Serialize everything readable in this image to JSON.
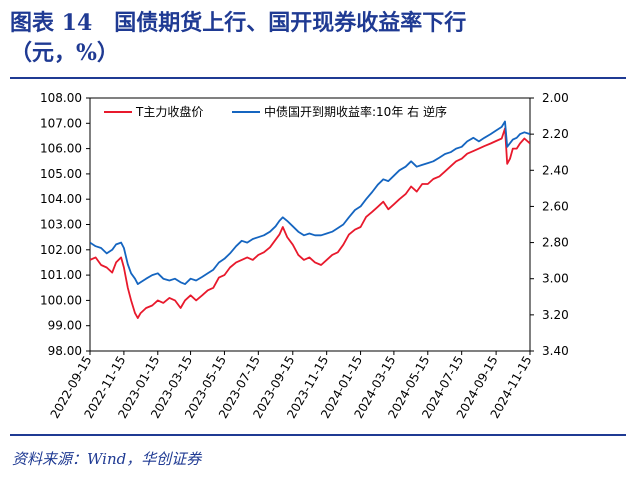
{
  "header": {
    "figure_label": "图表 14",
    "title_line1": "国债期货上行、国开现券收益率下行",
    "title_line2": "（元，%）"
  },
  "footer": {
    "source": "资料来源：Wind，华创证券"
  },
  "colors": {
    "title": "#1f3a93",
    "series_futures": "#e8192c",
    "series_yield": "#1565c0"
  },
  "chart_data": {
    "type": "line",
    "x_tick_labels": [
      "2022-09-15",
      "2022-11-15",
      "2023-01-15",
      "2023-03-15",
      "2023-05-15",
      "2023-07-15",
      "2023-09-15",
      "2023-11-15",
      "2024-01-15",
      "2024-03-15",
      "2024-05-15",
      "2024-07-15",
      "2024-09-15",
      "2024-11-15"
    ],
    "x_range": [
      "2022-09-15",
      "2024-11-15"
    ],
    "y_left": {
      "range": [
        98,
        108
      ],
      "ticks": [
        "98.00",
        "99.00",
        "100.00",
        "101.00",
        "102.00",
        "103.00",
        "104.00",
        "105.00",
        "106.00",
        "107.00",
        "108.00"
      ]
    },
    "y_right": {
      "range": [
        2.0,
        3.4
      ],
      "inverted": true,
      "ticks": [
        "2.00",
        "2.20",
        "2.40",
        "2.60",
        "2.80",
        "3.00",
        "3.20",
        "3.40"
      ]
    },
    "legend_position": "top",
    "series": [
      {
        "name": "T主力收盘价",
        "axis": "left",
        "color": "#e8192c",
        "points": [
          [
            "2022-09-15",
            101.6
          ],
          [
            "2022-09-25",
            101.7
          ],
          [
            "2022-10-05",
            101.4
          ],
          [
            "2022-10-15",
            101.3
          ],
          [
            "2022-10-25",
            101.1
          ],
          [
            "2022-11-01",
            101.5
          ],
          [
            "2022-11-10",
            101.7
          ],
          [
            "2022-11-15",
            101.3
          ],
          [
            "2022-11-22",
            100.5
          ],
          [
            "2022-11-28",
            100.0
          ],
          [
            "2022-12-05",
            99.5
          ],
          [
            "2022-12-10",
            99.3
          ],
          [
            "2022-12-15",
            99.5
          ],
          [
            "2022-12-25",
            99.7
          ],
          [
            "2023-01-05",
            99.8
          ],
          [
            "2023-01-15",
            100.0
          ],
          [
            "2023-01-25",
            99.9
          ],
          [
            "2023-02-05",
            100.1
          ],
          [
            "2023-02-15",
            100.0
          ],
          [
            "2023-02-25",
            99.7
          ],
          [
            "2023-03-05",
            100.0
          ],
          [
            "2023-03-15",
            100.2
          ],
          [
            "2023-03-25",
            100.0
          ],
          [
            "2023-04-05",
            100.2
          ],
          [
            "2023-04-15",
            100.4
          ],
          [
            "2023-04-25",
            100.5
          ],
          [
            "2023-05-05",
            100.9
          ],
          [
            "2023-05-15",
            101.0
          ],
          [
            "2023-05-25",
            101.3
          ],
          [
            "2023-06-05",
            101.5
          ],
          [
            "2023-06-15",
            101.6
          ],
          [
            "2023-06-25",
            101.7
          ],
          [
            "2023-07-05",
            101.6
          ],
          [
            "2023-07-15",
            101.8
          ],
          [
            "2023-07-25",
            101.9
          ],
          [
            "2023-08-05",
            102.1
          ],
          [
            "2023-08-15",
            102.4
          ],
          [
            "2023-08-22",
            102.6
          ],
          [
            "2023-08-28",
            102.9
          ],
          [
            "2023-09-05",
            102.5
          ],
          [
            "2023-09-15",
            102.2
          ],
          [
            "2023-09-25",
            101.8
          ],
          [
            "2023-10-05",
            101.6
          ],
          [
            "2023-10-15",
            101.7
          ],
          [
            "2023-10-25",
            101.5
          ],
          [
            "2023-11-05",
            101.4
          ],
          [
            "2023-11-15",
            101.6
          ],
          [
            "2023-11-25",
            101.8
          ],
          [
            "2023-12-05",
            101.9
          ],
          [
            "2023-12-15",
            102.2
          ],
          [
            "2023-12-25",
            102.6
          ],
          [
            "2024-01-05",
            102.8
          ],
          [
            "2024-01-15",
            102.9
          ],
          [
            "2024-01-25",
            103.3
          ],
          [
            "2024-02-05",
            103.5
          ],
          [
            "2024-02-15",
            103.7
          ],
          [
            "2024-02-25",
            103.9
          ],
          [
            "2024-03-05",
            103.6
          ],
          [
            "2024-03-15",
            103.8
          ],
          [
            "2024-03-25",
            104.0
          ],
          [
            "2024-04-05",
            104.2
          ],
          [
            "2024-04-15",
            104.5
          ],
          [
            "2024-04-25",
            104.3
          ],
          [
            "2024-05-05",
            104.6
          ],
          [
            "2024-05-15",
            104.6
          ],
          [
            "2024-05-25",
            104.8
          ],
          [
            "2024-06-05",
            104.9
          ],
          [
            "2024-06-15",
            105.1
          ],
          [
            "2024-06-25",
            105.3
          ],
          [
            "2024-07-05",
            105.5
          ],
          [
            "2024-07-15",
            105.6
          ],
          [
            "2024-07-25",
            105.8
          ],
          [
            "2024-08-05",
            105.9
          ],
          [
            "2024-08-15",
            106.0
          ],
          [
            "2024-08-25",
            106.1
          ],
          [
            "2024-09-05",
            106.2
          ],
          [
            "2024-09-15",
            106.3
          ],
          [
            "2024-09-25",
            106.4
          ],
          [
            "2024-10-01",
            106.8
          ],
          [
            "2024-10-05",
            105.4
          ],
          [
            "2024-10-10",
            105.6
          ],
          [
            "2024-10-15",
            106.0
          ],
          [
            "2024-10-22",
            106.0
          ],
          [
            "2024-10-28",
            106.2
          ],
          [
            "2024-11-05",
            106.4
          ],
          [
            "2024-11-15",
            106.2
          ]
        ]
      },
      {
        "name": "中债国开到期收益率:10年  右  逆序",
        "axis": "right",
        "color": "#1565c0",
        "points": [
          [
            "2022-09-15",
            2.8
          ],
          [
            "2022-09-25",
            2.82
          ],
          [
            "2022-10-05",
            2.83
          ],
          [
            "2022-10-15",
            2.86
          ],
          [
            "2022-10-25",
            2.84
          ],
          [
            "2022-11-01",
            2.81
          ],
          [
            "2022-11-10",
            2.8
          ],
          [
            "2022-11-15",
            2.83
          ],
          [
            "2022-11-22",
            2.92
          ],
          [
            "2022-11-28",
            2.97
          ],
          [
            "2022-12-05",
            3.0
          ],
          [
            "2022-12-10",
            3.03
          ],
          [
            "2022-12-15",
            3.02
          ],
          [
            "2022-12-25",
            3.0
          ],
          [
            "2023-01-05",
            2.98
          ],
          [
            "2023-01-15",
            2.97
          ],
          [
            "2023-01-25",
            3.0
          ],
          [
            "2023-02-05",
            3.01
          ],
          [
            "2023-02-15",
            3.0
          ],
          [
            "2023-02-25",
            3.02
          ],
          [
            "2023-03-05",
            3.03
          ],
          [
            "2023-03-15",
            3.0
          ],
          [
            "2023-03-25",
            3.01
          ],
          [
            "2023-04-05",
            2.99
          ],
          [
            "2023-04-15",
            2.97
          ],
          [
            "2023-04-25",
            2.95
          ],
          [
            "2023-05-05",
            2.91
          ],
          [
            "2023-05-15",
            2.89
          ],
          [
            "2023-05-25",
            2.86
          ],
          [
            "2023-06-05",
            2.82
          ],
          [
            "2023-06-15",
            2.79
          ],
          [
            "2023-06-25",
            2.8
          ],
          [
            "2023-07-05",
            2.78
          ],
          [
            "2023-07-15",
            2.77
          ],
          [
            "2023-07-25",
            2.76
          ],
          [
            "2023-08-05",
            2.74
          ],
          [
            "2023-08-15",
            2.71
          ],
          [
            "2023-08-22",
            2.68
          ],
          [
            "2023-08-28",
            2.66
          ],
          [
            "2023-09-05",
            2.68
          ],
          [
            "2023-09-15",
            2.71
          ],
          [
            "2023-09-25",
            2.74
          ],
          [
            "2023-10-05",
            2.76
          ],
          [
            "2023-10-15",
            2.75
          ],
          [
            "2023-10-25",
            2.76
          ],
          [
            "2023-11-05",
            2.76
          ],
          [
            "2023-11-15",
            2.75
          ],
          [
            "2023-11-25",
            2.74
          ],
          [
            "2023-12-05",
            2.72
          ],
          [
            "2023-12-15",
            2.7
          ],
          [
            "2023-12-25",
            2.66
          ],
          [
            "2024-01-05",
            2.62
          ],
          [
            "2024-01-15",
            2.6
          ],
          [
            "2024-01-25",
            2.56
          ],
          [
            "2024-02-05",
            2.52
          ],
          [
            "2024-02-15",
            2.48
          ],
          [
            "2024-02-25",
            2.45
          ],
          [
            "2024-03-05",
            2.46
          ],
          [
            "2024-03-15",
            2.43
          ],
          [
            "2024-03-25",
            2.4
          ],
          [
            "2024-04-05",
            2.38
          ],
          [
            "2024-04-15",
            2.35
          ],
          [
            "2024-04-25",
            2.38
          ],
          [
            "2024-05-05",
            2.37
          ],
          [
            "2024-05-15",
            2.36
          ],
          [
            "2024-05-25",
            2.35
          ],
          [
            "2024-06-05",
            2.33
          ],
          [
            "2024-06-15",
            2.31
          ],
          [
            "2024-06-25",
            2.3
          ],
          [
            "2024-07-05",
            2.28
          ],
          [
            "2024-07-15",
            2.27
          ],
          [
            "2024-07-25",
            2.24
          ],
          [
            "2024-08-05",
            2.22
          ],
          [
            "2024-08-15",
            2.24
          ],
          [
            "2024-08-25",
            2.22
          ],
          [
            "2024-09-05",
            2.2
          ],
          [
            "2024-09-15",
            2.18
          ],
          [
            "2024-09-25",
            2.16
          ],
          [
            "2024-10-01",
            2.13
          ],
          [
            "2024-10-05",
            2.27
          ],
          [
            "2024-10-10",
            2.25
          ],
          [
            "2024-10-15",
            2.23
          ],
          [
            "2024-10-22",
            2.22
          ],
          [
            "2024-10-28",
            2.2
          ],
          [
            "2024-11-05",
            2.19
          ],
          [
            "2024-11-15",
            2.2
          ]
        ]
      }
    ]
  }
}
